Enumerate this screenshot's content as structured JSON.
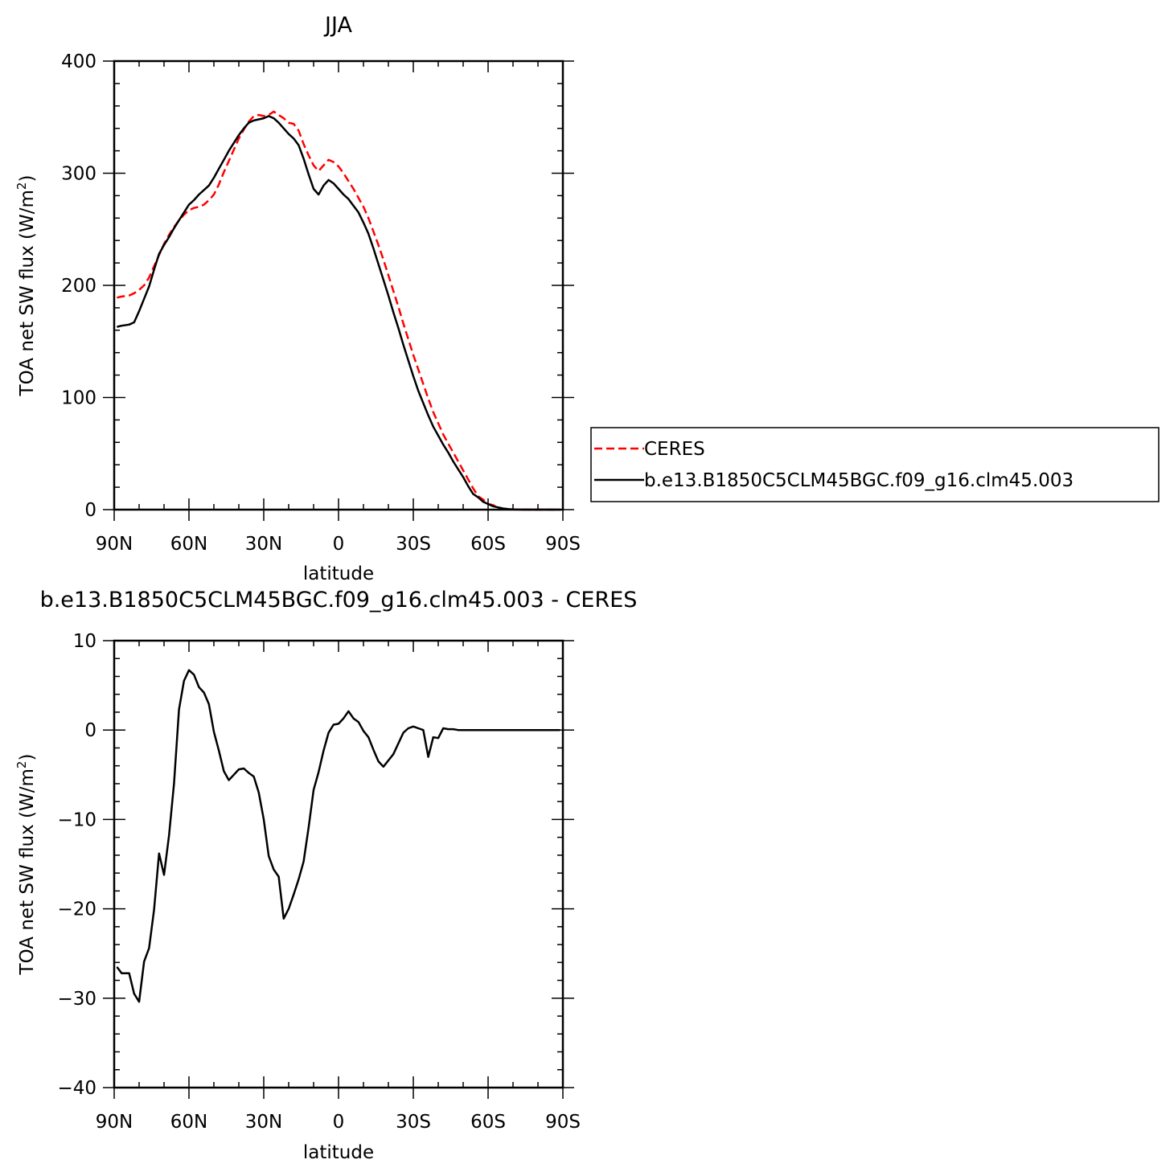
{
  "chart_data": [
    {
      "type": "line",
      "title": "JJA",
      "xlabel": "latitude",
      "ylabel": "TOA net SW flux (W/m²)",
      "ylabel_main": "TOA net SW flux (W/m",
      "ylabel_sup": "2",
      "ylabel_close": ")",
      "xlim": [
        90,
        -90
      ],
      "ylim": [
        0,
        400
      ],
      "yticks": [
        0,
        100,
        200,
        300,
        400
      ],
      "xtick_values": [
        90,
        60,
        30,
        0,
        -30,
        -60,
        -90
      ],
      "xtick_labels": [
        "90N",
        "60N",
        "30N",
        "0",
        "30S",
        "60S",
        "90S"
      ],
      "legend_position": "right",
      "x": [
        88.9,
        87,
        84,
        82,
        80,
        78,
        76,
        74,
        72,
        70,
        68,
        66,
        64,
        62,
        60,
        58,
        56,
        54,
        52,
        50,
        48,
        46,
        44,
        42,
        40,
        38,
        36,
        34,
        32,
        30,
        28,
        26,
        24,
        22,
        20,
        18,
        16,
        14,
        12,
        10,
        8,
        6,
        4,
        2,
        0,
        -2,
        -4,
        -6,
        -8,
        -10,
        -12,
        -14,
        -16,
        -18,
        -20,
        -22,
        -24,
        -26,
        -28,
        -30,
        -32,
        -34,
        -36,
        -38,
        -40,
        -42,
        -44,
        -46,
        -48,
        -50,
        -52,
        -54,
        -56,
        -58,
        -60,
        -62,
        -64,
        -66,
        -68,
        -70,
        -72,
        -74,
        -76,
        -78,
        -80,
        -82,
        -84,
        -86,
        -88,
        -88.9
      ],
      "series": [
        {
          "name": "CERES",
          "color": "#ff0000",
          "dash": "dashed",
          "values": [
            189,
            190,
            191,
            193,
            196,
            200,
            207,
            217,
            227,
            237,
            245,
            252,
            258,
            263,
            267,
            269,
            270,
            272,
            276,
            281,
            290,
            301,
            311,
            321,
            331,
            339,
            346,
            351,
            352,
            351,
            352,
            355,
            352,
            349,
            345,
            344,
            338,
            326,
            316,
            307,
            302,
            307,
            312,
            310,
            306,
            300,
            293,
            286,
            278,
            270,
            260,
            248,
            236,
            223,
            209,
            195,
            181,
            166,
            152,
            138,
            125,
            112,
            99,
            87,
            77,
            67,
            59,
            51,
            43,
            35,
            27,
            19,
            12,
            9,
            5,
            4,
            2,
            1,
            0.5,
            0.3,
            0.2,
            0.1,
            0.1,
            0,
            0,
            0,
            0,
            0,
            0,
            0
          ]
        },
        {
          "name": "b.e13.B1850C5CLM45BGC.f09_g16.clm45.003",
          "color": "#000000",
          "dash": "solid",
          "values": [
            163,
            164,
            165,
            167,
            177,
            188,
            199,
            214,
            228,
            236,
            243,
            251,
            258,
            265,
            272,
            276,
            281,
            285,
            289,
            296,
            304,
            312,
            320,
            327,
            334,
            340,
            345,
            347,
            348,
            349,
            351,
            349,
            345,
            340,
            335,
            331,
            325,
            313,
            299,
            286,
            281,
            289,
            294,
            291,
            286,
            281,
            277,
            271,
            265,
            256,
            246,
            233,
            219,
            205,
            191,
            176,
            162,
            147,
            133,
            119,
            106,
            95,
            84,
            74,
            66,
            58,
            51,
            43,
            36,
            29,
            21,
            14,
            11,
            7,
            5,
            3,
            2,
            1,
            0.5,
            0.2,
            0.1,
            0,
            0,
            0,
            0,
            0,
            0,
            0,
            0,
            0
          ]
        }
      ]
    },
    {
      "type": "line",
      "title": "b.e13.B1850C5CLM45BGC.f09_g16.clm45.003 - CERES",
      "xlabel": "latitude",
      "ylabel": "TOA net SW flux (W/m²)",
      "ylabel_main": "TOA net SW flux (W/m",
      "ylabel_sup": "2",
      "ylabel_close": ")",
      "xlim": [
        90,
        -90
      ],
      "ylim": [
        -40,
        10
      ],
      "yticks": [
        -40,
        -30,
        -20,
        -10,
        0,
        10
      ],
      "ytick_labels": [
        "−40",
        "−30",
        "−20",
        "−10",
        "0",
        "10"
      ],
      "xtick_values": [
        90,
        60,
        30,
        0,
        -30,
        -60,
        -90
      ],
      "xtick_labels": [
        "90N",
        "60N",
        "30N",
        "0",
        "30S",
        "60S",
        "90S"
      ],
      "x": [
        88.9,
        87,
        84,
        82,
        80,
        78,
        76,
        74,
        72,
        70,
        68,
        66,
        64,
        62,
        60,
        58,
        56,
        54,
        52,
        50,
        48,
        46,
        44,
        42,
        40,
        38,
        36,
        34,
        32,
        30,
        28,
        26,
        24,
        22,
        20,
        18,
        16,
        14,
        12,
        10,
        8,
        6,
        4,
        2,
        0,
        -2,
        -4,
        -6,
        -8,
        -10,
        -12,
        -14,
        -16,
        -18,
        -20,
        -22,
        -24,
        -26,
        -28,
        -30,
        -32,
        -34,
        -36,
        -38,
        -40,
        -42,
        -44,
        -46,
        -48,
        -50,
        -52,
        -54,
        -56,
        -58,
        -60,
        -62,
        -64,
        -66,
        -68,
        -70,
        -72,
        -74,
        -76,
        -78,
        -80,
        -82,
        -84,
        -86,
        -88,
        -88.9
      ],
      "series": [
        {
          "name": "",
          "color": "#000000",
          "dash": "solid",
          "values": [
            -26.5,
            -27.2,
            -27.2,
            -29.5,
            -30.4,
            -25.9,
            -24.4,
            -20.1,
            -13.8,
            -16.2,
            -11.8,
            -6,
            2.3,
            5.5,
            6.7,
            6.2,
            4.8,
            4.2,
            2.9,
            -0.2,
            -2.3,
            -4.6,
            -5.6,
            -5,
            -4.4,
            -4.3,
            -4.8,
            -5.2,
            -7,
            -10,
            -14.1,
            -15.6,
            -16.4,
            -21.1,
            -20,
            -18.4,
            -16.7,
            -14.7,
            -10.9,
            -6.7,
            -4.7,
            -2.3,
            -0.3,
            0.6,
            0.7,
            1.3,
            2.1,
            1.3,
            0.9,
            -0.1,
            -0.8,
            -2.2,
            -3.5,
            -4.1,
            -3.4,
            -2.7,
            -1.5,
            -0.3,
            0.2,
            0.4,
            0.2,
            0,
            -3,
            -0.8,
            -0.9,
            0.2,
            0.1,
            0.1,
            0,
            0,
            0,
            0,
            0,
            0,
            0,
            0,
            0,
            0,
            0,
            0,
            0,
            0,
            0,
            0,
            0,
            0,
            0,
            0,
            0,
            0
          ]
        }
      ]
    }
  ]
}
